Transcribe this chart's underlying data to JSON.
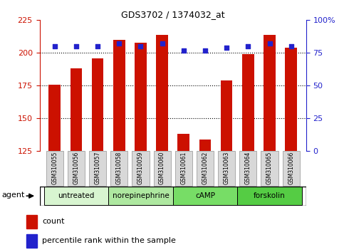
{
  "title": "GDS3702 / 1374032_at",
  "samples": [
    "GSM310055",
    "GSM310056",
    "GSM310057",
    "GSM310058",
    "GSM310059",
    "GSM310060",
    "GSM310061",
    "GSM310062",
    "GSM310063",
    "GSM310064",
    "GSM310065",
    "GSM310066"
  ],
  "counts": [
    176,
    188,
    196,
    210,
    208,
    214,
    138,
    134,
    179,
    199,
    214,
    204
  ],
  "percentile_ranks": [
    80,
    80,
    80,
    82,
    80,
    82,
    77,
    77,
    79,
    80,
    82,
    80
  ],
  "ylim_left": [
    125,
    225
  ],
  "ylim_right": [
    0,
    100
  ],
  "yticks_left": [
    125,
    150,
    175,
    200,
    225
  ],
  "yticks_right": [
    0,
    25,
    50,
    75,
    100
  ],
  "grid_lines": [
    150,
    175,
    200
  ],
  "bar_color": "#cc1100",
  "dot_color": "#2222cc",
  "agent_groups": [
    {
      "label": "untreated",
      "start": 0,
      "end": 3,
      "color": "#d8f5d0"
    },
    {
      "label": "norepinephrine",
      "start": 3,
      "end": 6,
      "color": "#aee8a0"
    },
    {
      "label": "cAMP",
      "start": 6,
      "end": 9,
      "color": "#77dd66"
    },
    {
      "label": "forskolin",
      "start": 9,
      "end": 12,
      "color": "#55cc44"
    }
  ],
  "tick_label_color_left": "#cc1100",
  "tick_label_color_right": "#2222cc",
  "sample_box_color": "#d8d8d8",
  "sample_box_edge": "#aaaaaa"
}
